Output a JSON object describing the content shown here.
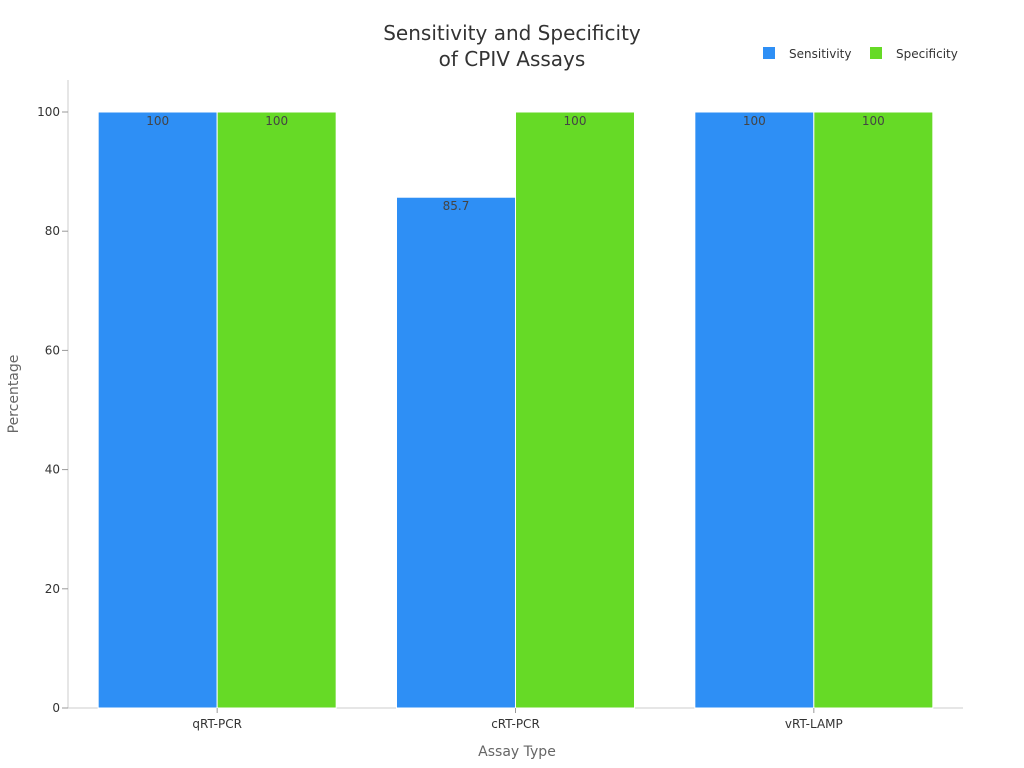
{
  "chart_data": {
    "type": "bar",
    "title_lines": [
      "Sensitivity and Specificity",
      "of CPIV Assays"
    ],
    "xlabel": "Assay Type",
    "ylabel": "Percentage",
    "categories": [
      "qRT-PCR",
      "cRT-PCR",
      "vRT-LAMP"
    ],
    "series": [
      {
        "name": "Sensitivity",
        "color": "#2e8ff5",
        "values": [
          100,
          85.7,
          100
        ],
        "value_labels": [
          "100",
          "85.7",
          "100"
        ]
      },
      {
        "name": "Specificity",
        "color": "#66da26",
        "values": [
          100,
          100,
          100
        ],
        "value_labels": [
          "100",
          "100",
          "100"
        ]
      }
    ],
    "ylim": [
      0,
      100
    ],
    "yticks": [
      0,
      20,
      40,
      60,
      80,
      100
    ],
    "ytick_labels": [
      "0",
      "20",
      "40",
      "60",
      "80",
      "100"
    ],
    "grid": false,
    "legend_position": "top-right"
  }
}
